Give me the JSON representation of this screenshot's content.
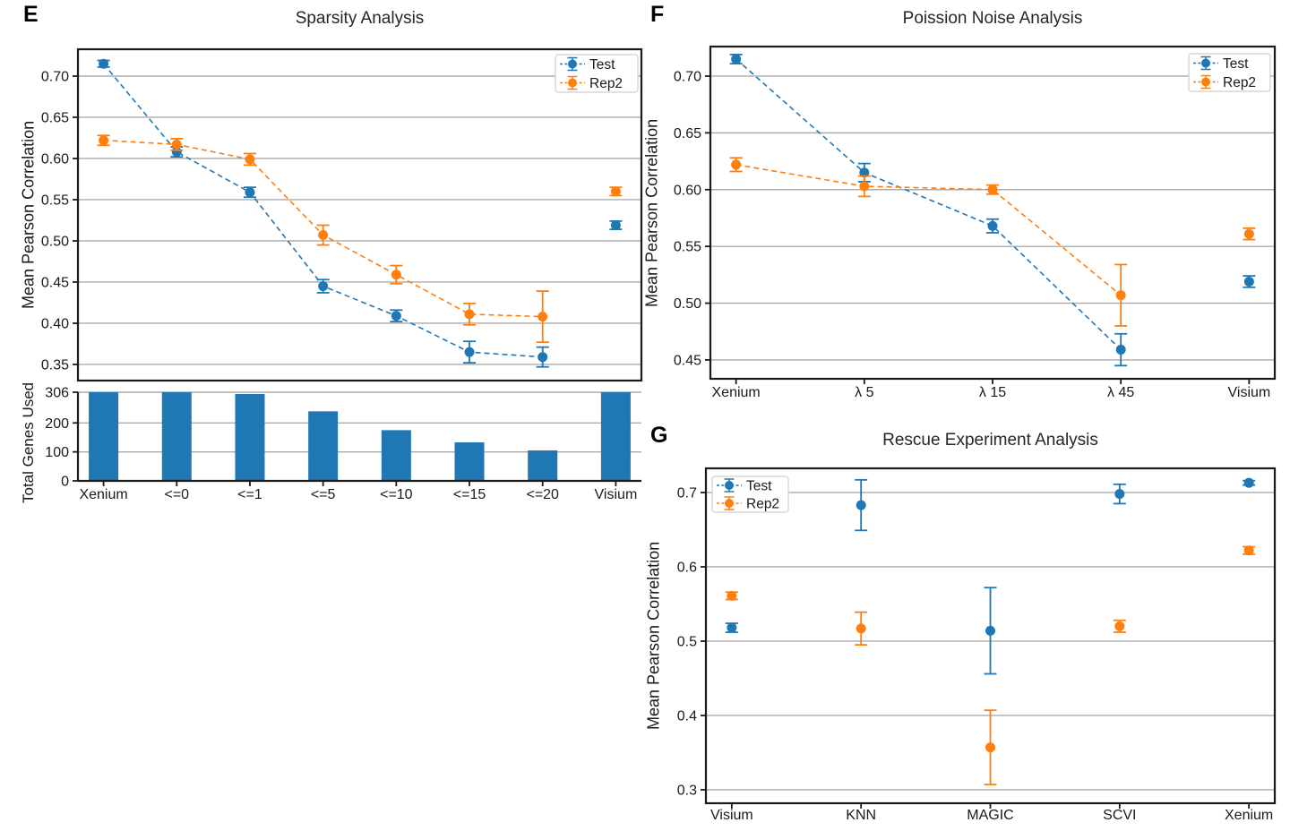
{
  "panel_labels": {
    "e": "E",
    "f": "F",
    "g": "G"
  },
  "colors": {
    "test": "#1f77b4",
    "rep2": "#ff7f0e",
    "bar": "#1f77b4",
    "grid": "#ababab",
    "spine": "#1a1a1a"
  },
  "chart_data": [
    {
      "panel": "E",
      "type": "scatter",
      "title": "Sparsity Analysis",
      "ylabel": "Mean Pearson Correlation",
      "categories": [
        "Xenium",
        "<=0",
        "<=1",
        "<=5",
        "<=10",
        "<=15",
        "<=20",
        "Visium"
      ],
      "series": [
        {
          "name": "Test",
          "color": "#1f77b4",
          "values": [
            0.715,
            0.608,
            0.559,
            0.445,
            0.409,
            0.365,
            0.359,
            0.519
          ],
          "errors": [
            0.004,
            0.006,
            0.006,
            0.008,
            0.007,
            0.013,
            0.012,
            0.005
          ]
        },
        {
          "name": "Rep2",
          "color": "#ff7f0e",
          "values": [
            0.622,
            0.617,
            0.599,
            0.507,
            0.459,
            0.411,
            0.408,
            0.56
          ],
          "errors": [
            0.006,
            0.007,
            0.007,
            0.012,
            0.011,
            0.013,
            0.031,
            0.005
          ]
        }
      ],
      "line_style": "dashed",
      "connect_range": [
        0,
        6
      ],
      "ylim": [
        0.3304,
        0.7326
      ],
      "yticks": [
        0.35,
        0.4,
        0.45,
        0.5,
        0.55,
        0.6,
        0.65,
        0.7
      ],
      "ytick_labels": [
        "0.35",
        "0.40",
        "0.45",
        "0.50",
        "0.55",
        "0.60",
        "0.65",
        "0.70"
      ],
      "grid": true,
      "legend": {
        "position": "top-right",
        "entries": [
          "Test",
          "Rep2"
        ]
      },
      "show_x_labels": false
    },
    {
      "panel": "E",
      "type": "bar",
      "title": "",
      "ylabel": "Total Genes Used",
      "categories": [
        "Xenium",
        "<=0",
        "<=1",
        "<=5",
        "<=10",
        "<=15",
        "<=20",
        "Visium"
      ],
      "values": [
        306,
        306,
        300,
        240,
        175,
        133,
        105,
        306
      ],
      "bar_color": "#1f77b4",
      "ylim": [
        0,
        306
      ],
      "yticks": [
        0,
        100,
        200,
        306
      ],
      "ytick_labels": [
        "0",
        "100",
        "200",
        "306"
      ],
      "grid": true,
      "show_x_labels": true
    },
    {
      "panel": "F",
      "type": "scatter",
      "title": "Poission Noise Analysis",
      "ylabel": "Mean Pearson Correlation",
      "categories": [
        "Xenium",
        "λ 5",
        "λ 15",
        "λ 45",
        "Visium"
      ],
      "series": [
        {
          "name": "Test",
          "color": "#1f77b4",
          "values": [
            0.715,
            0.615,
            0.568,
            0.459,
            0.519
          ],
          "errors": [
            0.004,
            0.008,
            0.006,
            0.014,
            0.005
          ]
        },
        {
          "name": "Rep2",
          "color": "#ff7f0e",
          "values": [
            0.622,
            0.603,
            0.6,
            0.507,
            0.561
          ],
          "errors": [
            0.006,
            0.009,
            0.004,
            0.027,
            0.005
          ]
        }
      ],
      "line_style": "dashed",
      "connect_range": [
        0,
        3
      ],
      "ylim": [
        0.4334,
        0.726
      ],
      "yticks": [
        0.45,
        0.5,
        0.55,
        0.6,
        0.65,
        0.7
      ],
      "ytick_labels": [
        "0.45",
        "0.50",
        "0.55",
        "0.60",
        "0.65",
        "0.70"
      ],
      "grid": true,
      "legend": {
        "position": "top-right",
        "entries": [
          "Test",
          "Rep2"
        ]
      },
      "show_x_labels": true
    },
    {
      "panel": "G",
      "type": "scatter",
      "title": "Rescue Experiment Analysis",
      "ylabel": "Mean Pearson Correlation",
      "categories": [
        "Visium",
        "KNN",
        "MAGIC",
        "SCVI",
        "Xenium"
      ],
      "series": [
        {
          "name": "Test",
          "color": "#1f77b4",
          "values": [
            0.518,
            0.683,
            0.514,
            0.698,
            0.713
          ],
          "errors": [
            0.006,
            0.034,
            0.058,
            0.013,
            0.003
          ]
        },
        {
          "name": "Rep2",
          "color": "#ff7f0e",
          "values": [
            0.561,
            0.517,
            0.357,
            0.52,
            0.622
          ],
          "errors": [
            0.005,
            0.022,
            0.05,
            0.008,
            0.005
          ]
        }
      ],
      "line_style": "none",
      "connect_range": null,
      "ylim": [
        0.2819,
        0.7325
      ],
      "yticks": [
        0.3,
        0.4,
        0.5,
        0.6,
        0.7
      ],
      "ytick_labels": [
        "0.3",
        "0.4",
        "0.5",
        "0.6",
        "0.7"
      ],
      "grid": true,
      "legend": {
        "position": "top-left",
        "entries": [
          "Test",
          "Rep2"
        ]
      },
      "show_x_labels": true
    }
  ]
}
